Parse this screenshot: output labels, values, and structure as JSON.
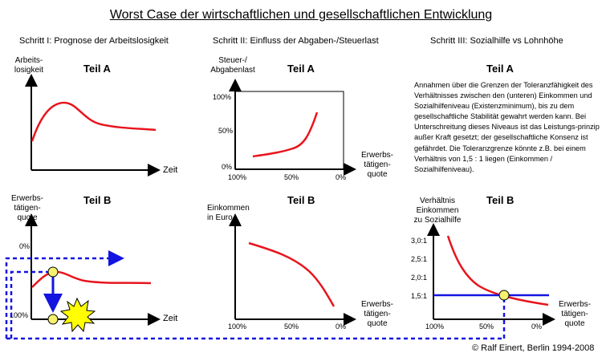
{
  "title": "Worst Case der wirtschaftlichen und gesellschaftlichen Entwicklung",
  "sections": {
    "s1": "Schritt I: Prognose der Arbeitslosigkeit",
    "s2": "Schritt II: Einfluss der Abgaben-/Steuerlast",
    "s3": "Schritt III: Sozialhilfe vs Lohnhöhe"
  },
  "teil_a": "Teil A",
  "teil_b": "Teil B",
  "panels": {
    "s1a": {
      "ylabel_1": "Arbeits-",
      "ylabel_2": "losigkeit",
      "xlabel": "Zeit"
    },
    "s1b": {
      "ylabel_1": "Erwerbs-",
      "ylabel_2": "tätigen-",
      "ylabel_3": "quote",
      "tick_top": "0%",
      "tick_bottom": "100%",
      "xlabel": "Zeit"
    },
    "s2a": {
      "ylabel_1": "Steuer-/",
      "ylabel_2": "Abgabenlast",
      "ytick_100": "100%",
      "ytick_50": "50%",
      "ytick_0": "0%",
      "xtick_100": "100%",
      "xtick_50": "50%",
      "xtick_0": "0%",
      "xlabel_1": "Erwerbs-",
      "xlabel_2": "tätigen-",
      "xlabel_3": "quote"
    },
    "s2b": {
      "ylabel_1": "Einkommen",
      "ylabel_2": "in Euro",
      "xtick_100": "100%",
      "xtick_50": "50%",
      "xtick_0": "0%",
      "xlabel_1": "Erwerbs-",
      "xlabel_2": "tätigen-",
      "xlabel_3": "quote"
    },
    "s3a": {
      "note": "Annahmen über die Grenzen der Toleranzfähigkeit des Verhältnisses zwischen den (unteren) Einkommen und Sozialhilfeniveau (Existenzminimum), bis zu dem gesellschaftliche Stabilität gewahrt werden kann. Bei Unterschreitung dieses Niveaus ist das Leistungs-prinzip außer Kraft gesetzt; der gesellschaftliche Konsenz ist gefährdet. Die Toleranzgrenze könnte z.B. bei einem Verhältnis von 1,5 : 1 liegen (Einkommen / Sozialhilfeniveau)."
    },
    "s3b": {
      "ylabel_1": "Verhältnis",
      "ylabel_2": "Einkommen",
      "ylabel_3": "zu Sozialhilfe",
      "ytick_30": "3,0:1",
      "ytick_25": "2,5:1",
      "ytick_20": "2,0:1",
      "ytick_15": "1,5:1",
      "xtick_100": "100%",
      "xtick_50": "50%",
      "xtick_0": "0%",
      "xlabel_1": "Erwerbs-",
      "xlabel_2": "tätigen-",
      "xlabel_3": "quote"
    }
  },
  "copyright": "© Ralf Einert, Berlin 1994-2008",
  "colors": {
    "curve": "#e8141c",
    "guide": "#1414e0",
    "marker": "#f5f06e",
    "burst": "#ffff00"
  }
}
